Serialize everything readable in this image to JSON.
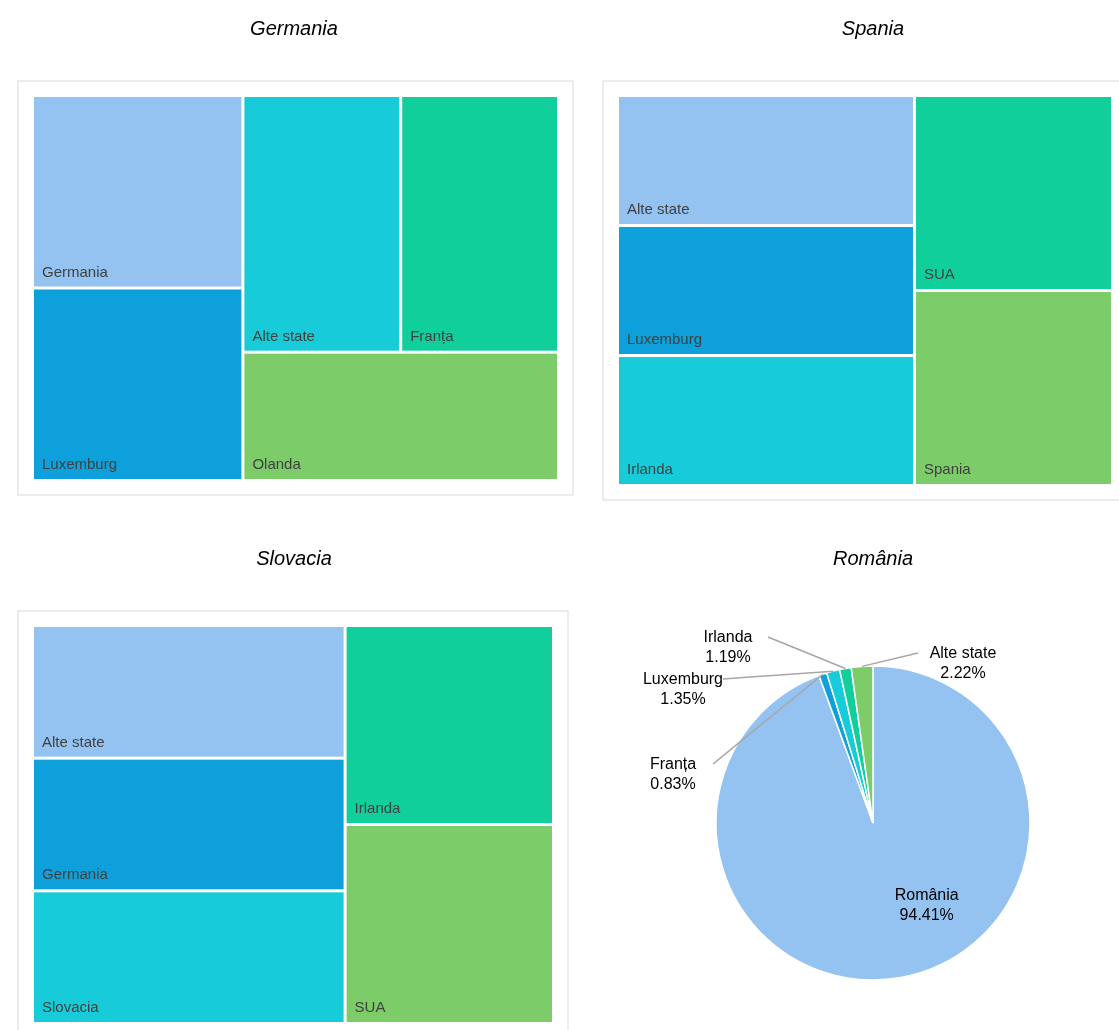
{
  "chart_data": [
    {
      "type": "other",
      "title": "Germania",
      "categories": [
        "Germania",
        "Luxemburg",
        "Alte state",
        "Franța",
        "Olanda"
      ],
      "colors": [
        "#94c3f2",
        "#0ea0da",
        "#17cbd8",
        "#10cf9b",
        "#7ccc6a"
      ]
    },
    {
      "type": "other",
      "title": "Spania",
      "categories": [
        "Alte state",
        "Luxemburg",
        "Irlanda",
        "SUA",
        "Spania"
      ],
      "colors": [
        "#94c3f2",
        "#0ea0da",
        "#17cbd8",
        "#10cf9b",
        "#7ccc6a"
      ]
    },
    {
      "type": "other",
      "title": "Slovacia",
      "categories": [
        "Alte state",
        "Germania",
        "Slovacia",
        "Irlanda",
        "SUA"
      ],
      "colors": [
        "#94c3f2",
        "#0ea0da",
        "#17cbd8",
        "#10cf9b",
        "#7ccc6a"
      ]
    },
    {
      "type": "pie",
      "title": "România",
      "categories": [
        "România",
        "Franța",
        "Luxemburg",
        "Irlanda",
        "Alte state"
      ],
      "values": [
        94.41,
        0.83,
        1.35,
        1.19,
        2.22
      ],
      "value_labels": [
        "94.41%",
        "0.83%",
        "1.35%",
        "1.19%",
        "2.22%"
      ],
      "colors": [
        "#94c3f2",
        "#0ea0da",
        "#17cbd8",
        "#10cf9b",
        "#7ccc6a"
      ]
    }
  ]
}
